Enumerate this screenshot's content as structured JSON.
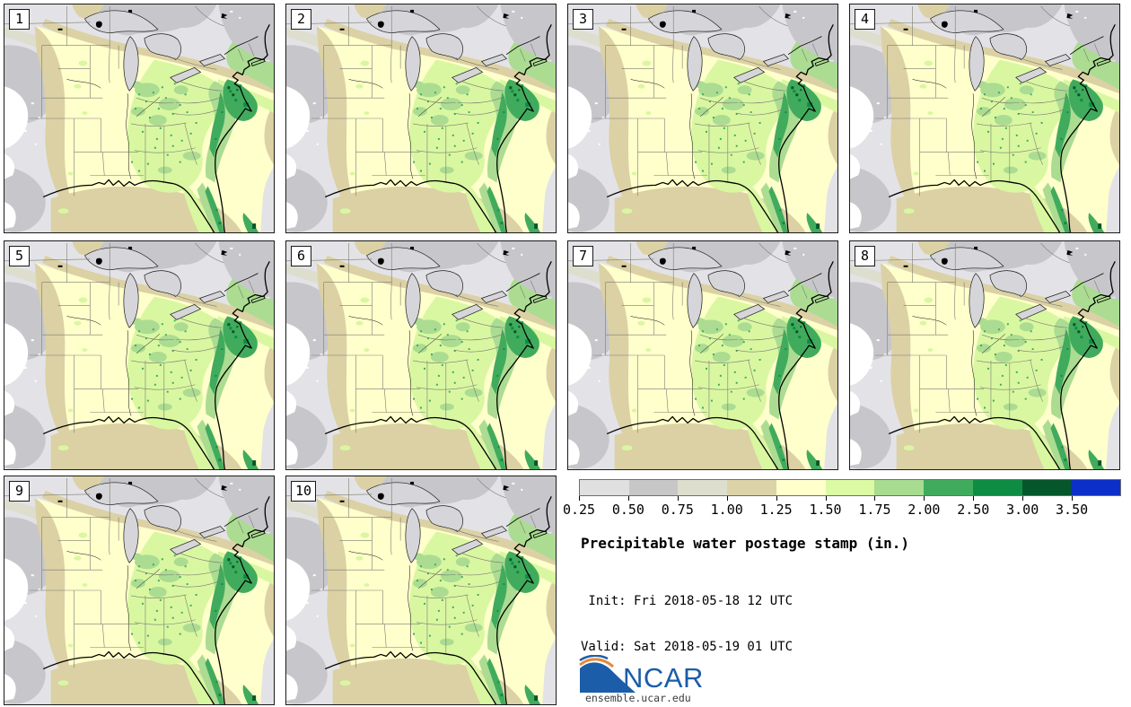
{
  "figure": {
    "title": "Precipitable water postage stamp (in.)",
    "init_label": " Init: Fri 2018-05-18 12 UTC",
    "valid_label": "Valid: Sat 2018-05-19 01 UTC"
  },
  "panels": [
    {
      "label": "1"
    },
    {
      "label": "2"
    },
    {
      "label": "3"
    },
    {
      "label": "4"
    },
    {
      "label": "5"
    },
    {
      "label": "6"
    },
    {
      "label": "7"
    },
    {
      "label": "8"
    },
    {
      "label": "9"
    },
    {
      "label": "10"
    }
  ],
  "colorbar": {
    "labels": [
      "0.25",
      "0.50",
      "0.75",
      "1.00",
      "1.25",
      "1.50",
      "1.75",
      "2.00",
      "2.50",
      "3.00",
      "3.50"
    ],
    "colors": [
      "#e0e0e0",
      "#c7c7c7",
      "#dedecf",
      "#ddd3a8",
      "#ffffcc",
      "#dcfaa4",
      "#a8dc90",
      "#41ab5d",
      "#0e8c44",
      "#06562b",
      "#0d2fc9"
    ]
  },
  "logo": {
    "org": "NCAR",
    "site": "ensemble.ucar.edu",
    "blue": "#1b5da8",
    "orange": "#e5893b"
  }
}
